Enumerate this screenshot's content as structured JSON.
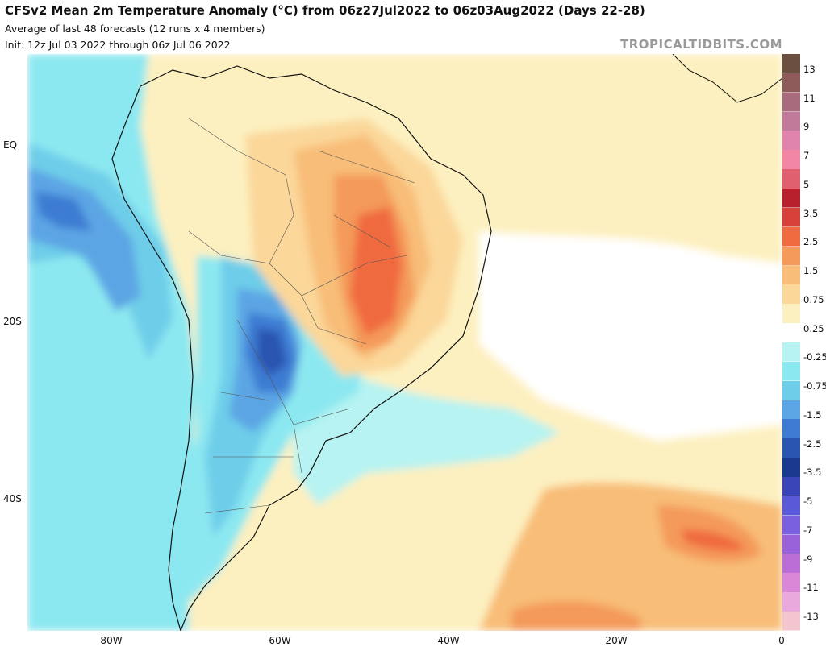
{
  "header": {
    "title": "CFSv2 Mean 2m Temperature Anomaly (°C) from 06z27Jul2022 to 06z03Aug2022 (Days 22-28)",
    "subtitle": "Average of last 48 forecasts (12 runs x 4 members)",
    "init": "Init: 12z Jul 03 2022 through 06z Jul 06 2022",
    "credit": "TROPICALTIDBITS.COM"
  },
  "map": {
    "region": "South America",
    "lat_labels": [
      "EQ",
      "20S",
      "40S"
    ],
    "lon_labels": [
      "80W",
      "60W",
      "40W",
      "20W",
      "0"
    ]
  },
  "colorbar": {
    "labels": [
      "13",
      "11",
      "9",
      "7",
      "5",
      "3.5",
      "2.5",
      "1.5",
      "0.75",
      "0.25",
      "-0.25",
      "-0.75",
      "-1.5",
      "-2.5",
      "-3.5",
      "-5",
      "-7",
      "-9",
      "-11",
      "-13"
    ],
    "colors": [
      "#6b4f3f",
      "#8f5a5a",
      "#a86b7d",
      "#c27a9a",
      "#e083ad",
      "#f287a5",
      "#e06070",
      "#b8202e",
      "#d8413a",
      "#f06a40",
      "#f49a5a",
      "#f8bd78",
      "#fbd79a",
      "#fdf0c0",
      "#ffffff",
      "#b6f3f2",
      "#8ce8f0",
      "#6ecde9",
      "#5ba5e4",
      "#3d7bd2",
      "#2a55b0",
      "#1a3a8f",
      "#3a46b8",
      "#5a5ad8",
      "#7a60de",
      "#9a62da",
      "#bb6fd6",
      "#d987d6",
      "#eaa9dc",
      "#f3c6cf"
    ]
  }
}
